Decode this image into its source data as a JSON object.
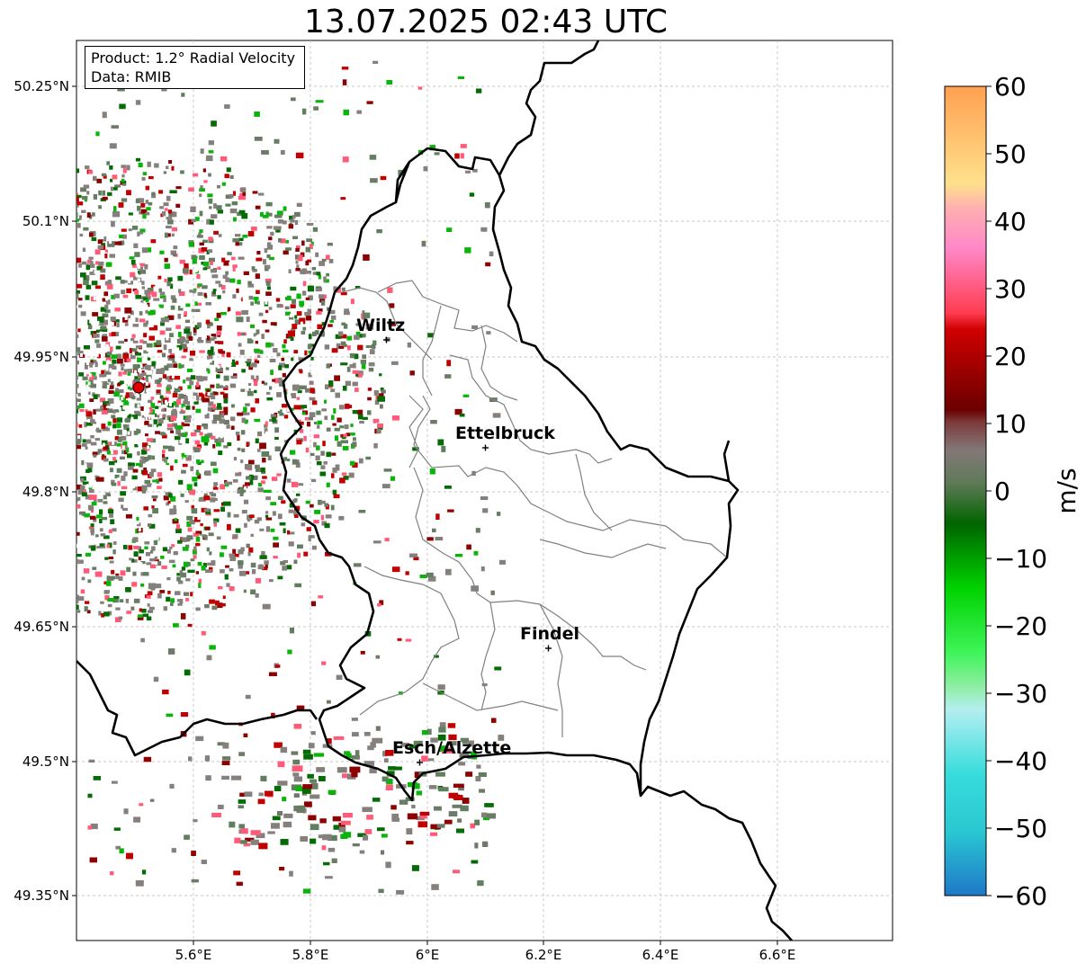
{
  "title": "13.07.2025 02:43 UTC",
  "info": {
    "product": "Product: 1.2° Radial Velocity",
    "data": "Data: RMIB"
  },
  "axes": {
    "y_ticks": [
      "50.25°N",
      "50.1°N",
      "49.95°N",
      "49.8°N",
      "49.65°N",
      "49.5°N",
      "49.35°N"
    ],
    "x_ticks": [
      "5.6°E",
      "5.8°E",
      "6°E",
      "6.2°E",
      "6.4°E",
      "6.6°E"
    ]
  },
  "cities": [
    {
      "name": "Wiltz"
    },
    {
      "name": "Ettelbruck"
    },
    {
      "name": "Findel"
    },
    {
      "name": "Esch/Alzette"
    }
  ],
  "colorbar": {
    "unit": "m/s",
    "ticks": [
      "60",
      "50",
      "40",
      "30",
      "20",
      "10",
      "0",
      "−10",
      "−20",
      "−30",
      "−40",
      "−50",
      "−60"
    ],
    "range": [
      -60,
      60
    ]
  },
  "colors": {
    "zero_gray": "#86807c",
    "neg_green": "#0ab40a",
    "dark_green": "#056b05",
    "pos_red": "#c00000",
    "pink": "#ff5a78"
  }
}
